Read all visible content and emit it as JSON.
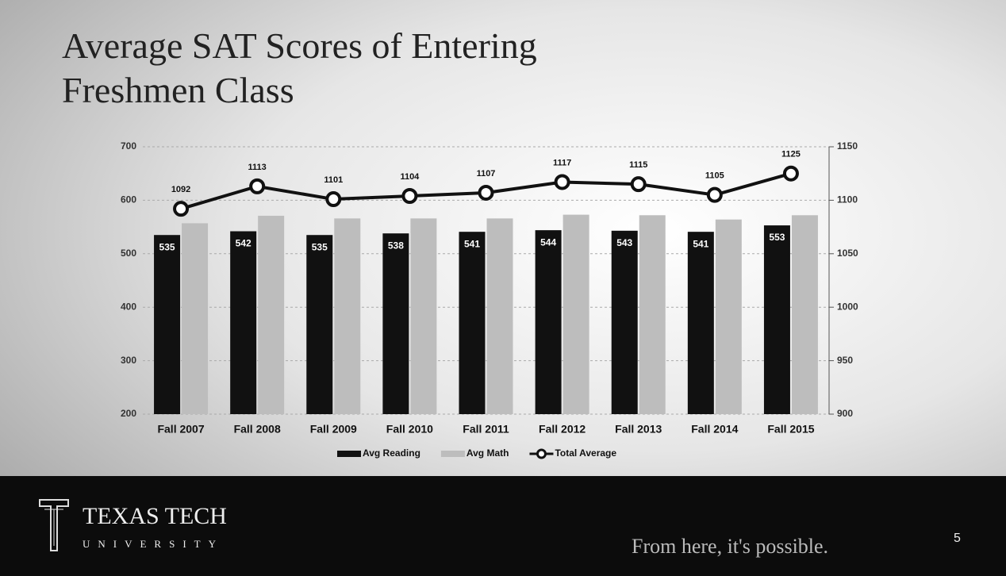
{
  "chart_data": {
    "type": "bar_line",
    "title": "Average SAT Scores of Entering Freshmen Class",
    "categories": [
      "Fall 2007",
      "Fall 2008",
      "Fall 2009",
      "Fall 2010",
      "Fall 2011",
      "Fall 2012",
      "Fall 2013",
      "Fall 2014",
      "Fall 2015"
    ],
    "series": [
      {
        "name": "Avg Reading",
        "type": "bar",
        "color": "#111111",
        "values": [
          535,
          542,
          535,
          538,
          541,
          544,
          543,
          541,
          553
        ]
      },
      {
        "name": "Avg Math",
        "type": "bar",
        "color": "#bdbdbd",
        "values": [
          557,
          571,
          566,
          566,
          566,
          573,
          572,
          564,
          572
        ]
      },
      {
        "name": "Total Average",
        "type": "line",
        "axis": "y2",
        "color": "#111111",
        "values": [
          1092,
          1113,
          1101,
          1104,
          1107,
          1117,
          1115,
          1105,
          1125
        ]
      }
    ],
    "ylim": [
      200,
      700
    ],
    "yticks": [
      200,
      300,
      400,
      500,
      600,
      700
    ],
    "y2lim": [
      900,
      1150
    ],
    "y2ticks": [
      900,
      950,
      1000,
      1050,
      1100,
      1150
    ],
    "grid": true,
    "legend": "bottom"
  },
  "footer": {
    "name": "TEXAS TECH",
    "subname": "UNIVERSITY",
    "slogan": "From here, it's possible.",
    "page": "5"
  }
}
